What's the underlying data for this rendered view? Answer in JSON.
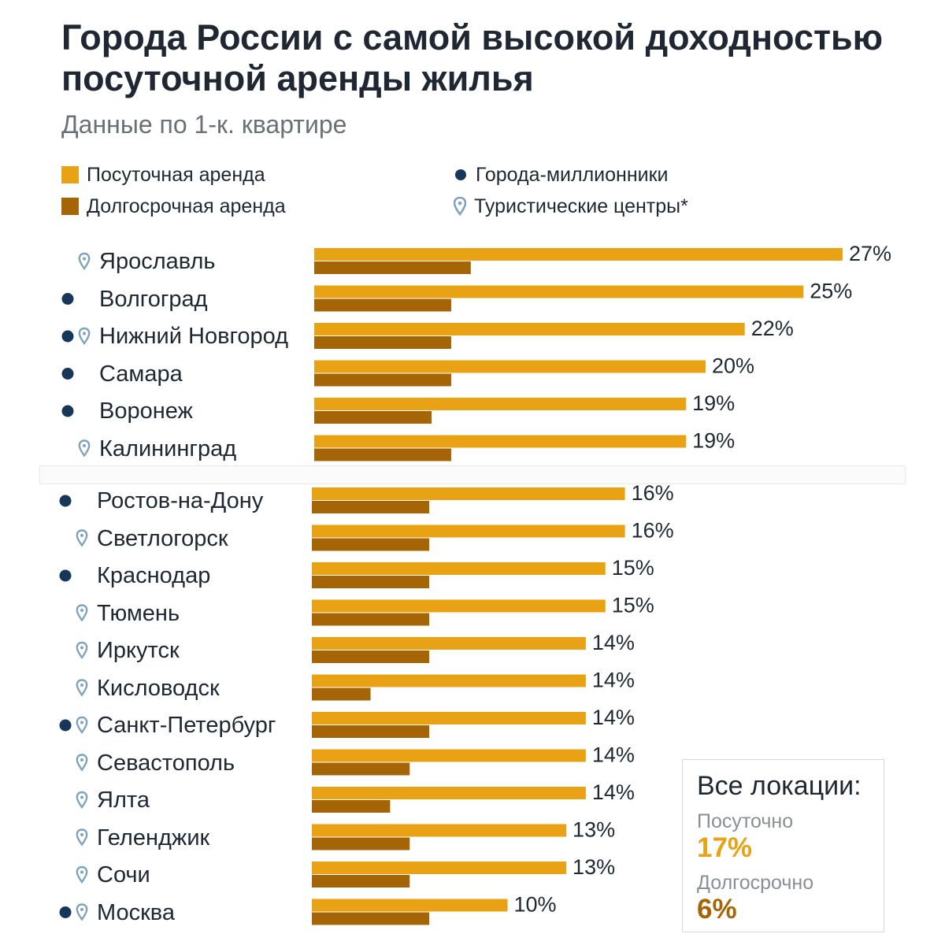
{
  "header": {
    "title": "Города России с самой высокой доходностью посуточной аренды жилья",
    "subtitle": "Данные по 1-к. квартире"
  },
  "legend": {
    "daily": "Посуточная аренда",
    "long": "Долгосрочная аренда",
    "million": "Города-миллионники",
    "tourist": "Туристические центры*"
  },
  "colors": {
    "daily": "#e9a214",
    "long": "#a56406",
    "million_dot": "#16365a",
    "tourist_pin": "#7fa3bd"
  },
  "summary": {
    "title": "Все локации:",
    "daily_label": "Посуточно",
    "daily_value": "17%",
    "long_label": "Долгосрочно",
    "long_value": "6%"
  },
  "chart_data": {
    "type": "bar",
    "orientation": "horizontal",
    "title": "Города России с самой высокой доходностью посуточной аренды жилья",
    "subtitle": "Данные по 1-к. квартире",
    "categories": [
      "Ярославль",
      "Волгоград",
      "Нижний Новгород",
      "Самара",
      "Воронеж",
      "Калининград",
      "Ростов-на-Дону",
      "Светлогорск",
      "Краснодар",
      "Тюмень",
      "Иркутск",
      "Кисловодск",
      "Санкт-Петербург",
      "Севастополь",
      "Ялта",
      "Геленджик",
      "Сочи",
      "Москва"
    ],
    "million": [
      false,
      true,
      true,
      true,
      true,
      false,
      true,
      false,
      true,
      false,
      false,
      false,
      true,
      false,
      false,
      false,
      false,
      true
    ],
    "tourist": [
      true,
      false,
      true,
      false,
      false,
      true,
      false,
      true,
      false,
      true,
      true,
      true,
      true,
      true,
      true,
      true,
      true,
      true
    ],
    "series": [
      {
        "name": "Посуточная аренда",
        "values": [
          27,
          25,
          22,
          20,
          19,
          19,
          16,
          16,
          15,
          15,
          14,
          14,
          14,
          14,
          14,
          13,
          13,
          10
        ],
        "labels": [
          "27%",
          "25%",
          "22%",
          "20%",
          "19%",
          "19%",
          "16%",
          "16%",
          "15%",
          "15%",
          "14%",
          "14%",
          "14%",
          "14%",
          "14%",
          "13%",
          "13%",
          "10%"
        ]
      },
      {
        "name": "Долгосрочная аренда",
        "values": [
          8,
          7,
          7,
          7,
          6,
          7,
          6,
          6,
          6,
          6,
          6,
          3,
          6,
          5,
          4,
          5,
          5,
          6
        ]
      }
    ],
    "xlim": [
      0,
      27
    ],
    "grid": false,
    "legend_position": "top"
  }
}
